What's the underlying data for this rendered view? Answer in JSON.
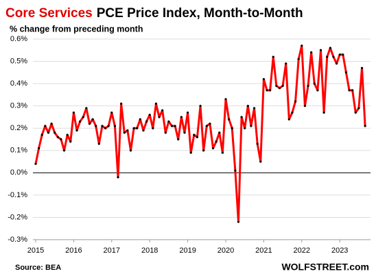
{
  "chart_data": {
    "type": "line",
    "title_highlight": "Core Services",
    "title": "PCE Price Index, Month-to-Month",
    "subtitle": "% change from preceding month",
    "source": "Source: BEA",
    "watermark": "WOLFSTREET.com",
    "categories": [
      "2015",
      null,
      null,
      null,
      null,
      null,
      null,
      null,
      null,
      null,
      null,
      null,
      "2016",
      null,
      null,
      null,
      null,
      null,
      null,
      null,
      null,
      null,
      null,
      null,
      "2017",
      null,
      null,
      null,
      null,
      null,
      null,
      null,
      null,
      null,
      null,
      null,
      "2018",
      null,
      null,
      null,
      null,
      null,
      null,
      null,
      null,
      null,
      null,
      null,
      "2019",
      null,
      null,
      null,
      null,
      null,
      null,
      null,
      null,
      null,
      null,
      null,
      "2020",
      null,
      null,
      null,
      null,
      null,
      null,
      null,
      null,
      null,
      null,
      null,
      "2021",
      null,
      null,
      null,
      null,
      null,
      null,
      null,
      null,
      null,
      null,
      null,
      "2022",
      null,
      null,
      null,
      null,
      null,
      null,
      null,
      null,
      null,
      null,
      null,
      "2023",
      null,
      null,
      null,
      null,
      null,
      null,
      null,
      null
    ],
    "series": [
      {
        "name": "Core Services",
        "color": "#ff0000",
        "values": [
          0.04,
          0.11,
          0.17,
          0.21,
          0.18,
          0.22,
          0.18,
          0.16,
          0.15,
          0.1,
          0.17,
          0.14,
          0.27,
          0.19,
          0.23,
          0.25,
          0.29,
          0.22,
          0.24,
          0.21,
          0.13,
          0.21,
          0.2,
          0.21,
          0.27,
          0.21,
          -0.02,
          0.31,
          0.18,
          0.19,
          0.1,
          0.2,
          0.2,
          0.24,
          0.19,
          0.23,
          0.26,
          0.2,
          0.31,
          0.25,
          0.28,
          0.18,
          0.23,
          0.21,
          0.21,
          0.15,
          0.25,
          0.18,
          0.27,
          0.09,
          0.17,
          0.16,
          0.3,
          0.1,
          0.21,
          0.22,
          0.11,
          0.14,
          0.18,
          0.09,
          0.33,
          0.24,
          0.2,
          0.01,
          -0.22,
          0.25,
          0.2,
          0.3,
          0.21,
          0.29,
          0.13,
          0.05,
          0.42,
          0.37,
          0.37,
          0.52,
          0.39,
          0.38,
          0.39,
          0.49,
          0.24,
          0.27,
          0.32,
          0.51,
          0.57,
          0.3,
          0.39,
          0.54,
          0.4,
          0.37,
          0.55,
          0.27,
          0.52,
          0.56,
          0.52,
          0.49,
          0.53,
          0.53,
          0.45,
          0.37,
          0.37,
          0.27,
          0.29,
          0.47,
          0.21
        ]
      }
    ],
    "ylim": [
      -0.3,
      0.6
    ],
    "yticks": [
      {
        "value": -0.3,
        "label": "-0.3%"
      },
      {
        "value": -0.2,
        "label": "-0.2%"
      },
      {
        "value": -0.1,
        "label": "-0.1%"
      },
      {
        "value": 0,
        "label": "0.0%"
      },
      {
        "value": 0.1,
        "label": "0.1%"
      },
      {
        "value": 0.2,
        "label": "0.2%"
      },
      {
        "value": 0.3,
        "label": "0.3%"
      },
      {
        "value": 0.4,
        "label": "0.4%"
      },
      {
        "value": 0.5,
        "label": "0.5%"
      },
      {
        "value": 0.6,
        "label": "0.6%"
      }
    ],
    "grid": true,
    "marker_color": "#000000"
  }
}
